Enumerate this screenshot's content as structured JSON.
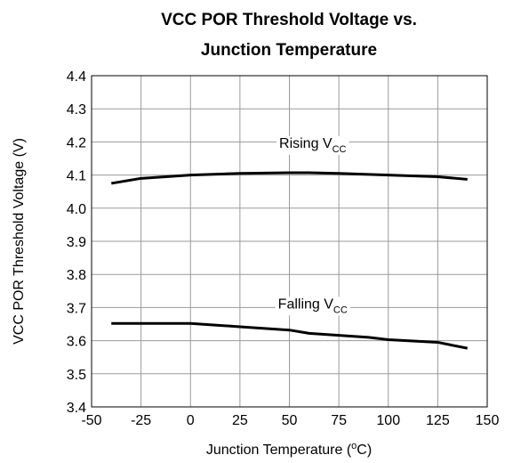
{
  "chart_data": {
    "type": "line",
    "title": [
      "VCC POR Threshold Voltage vs.",
      "Junction Temperature"
    ],
    "xlabel": {
      "text": "Junction Temperature (",
      "sup": "o",
      "after": "C)"
    },
    "ylabel": "VCC POR Threshold Voltage (V)",
    "xlim": [
      -50,
      150
    ],
    "xticks": [
      -50,
      -25,
      0,
      25,
      50,
      75,
      100,
      125,
      150
    ],
    "ylim": [
      3.4,
      4.4
    ],
    "yticks": [
      3.4,
      3.5,
      3.6,
      3.7,
      3.8,
      3.9,
      {
        "value": 4,
        "label": "4.0"
      },
      4.1,
      4.2,
      4.3,
      4.4
    ],
    "grid": true,
    "series": [
      {
        "label": {
          "text": "Rising V",
          "sub": "CC"
        },
        "color": "#000000",
        "x": [
          -40,
          -25,
          0,
          25,
          50,
          60,
          75,
          100,
          125,
          140
        ],
        "values": [
          4.075,
          4.09,
          4.1,
          4.105,
          4.107,
          4.107,
          4.105,
          4.1,
          4.095,
          4.087
        ]
      },
      {
        "label": {
          "text": "Falling V",
          "sub": "CC"
        },
        "color": "#000000",
        "x": [
          -40,
          -25,
          0,
          25,
          50,
          60,
          75,
          90,
          100,
          125,
          140
        ],
        "values": [
          3.652,
          3.652,
          3.652,
          3.642,
          3.632,
          3.622,
          3.616,
          3.61,
          3.603,
          3.595,
          3.577
        ]
      }
    ]
  }
}
